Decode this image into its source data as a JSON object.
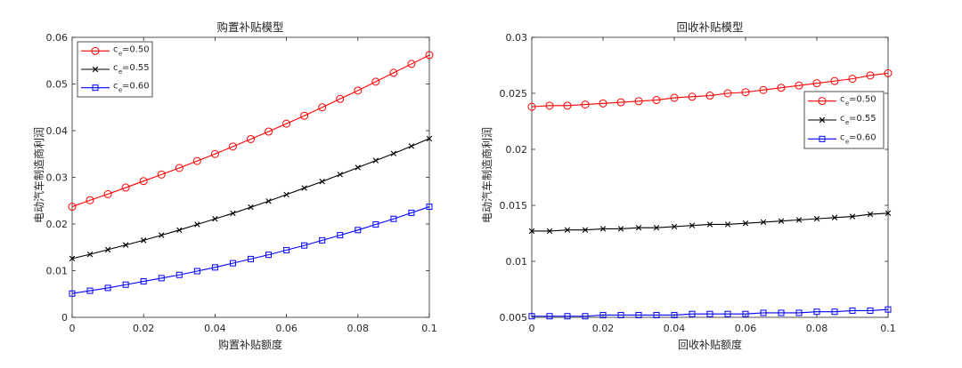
{
  "colors": {
    "red": "#ff0000",
    "black": "#000000",
    "blue": "#0000ff",
    "axis": "#262626"
  },
  "chart_data": [
    {
      "type": "line",
      "title": "购置补贴模型",
      "xlabel": "购置补贴额度",
      "ylabel": "电动汽车制造商利润",
      "xlim": [
        0,
        0.1
      ],
      "ylim": [
        0,
        0.06
      ],
      "xticks": [
        0,
        0.02,
        0.04,
        0.06,
        0.08,
        0.1
      ],
      "xtick_labels": [
        "0",
        "0.02",
        "0.04",
        "0.06",
        "0.08",
        "0.1"
      ],
      "yticks": [
        0,
        0.01,
        0.02,
        0.03,
        0.04,
        0.05,
        0.06
      ],
      "ytick_labels": [
        "0",
        "0.01",
        "0.02",
        "0.03",
        "0.04",
        "0.05",
        "0.06"
      ],
      "legend": "top-left",
      "x": [
        0,
        0.005,
        0.01,
        0.015,
        0.02,
        0.025,
        0.03,
        0.035,
        0.04,
        0.045,
        0.05,
        0.055,
        0.06,
        0.065,
        0.07,
        0.075,
        0.08,
        0.085,
        0.09,
        0.095,
        0.1
      ],
      "series": [
        {
          "name": "c_e=0.50",
          "label_main": "c",
          "label_sub": "e",
          "label_rest": "=0.50",
          "color": "#ff0000",
          "marker": "circle",
          "values": [
            0.0237,
            0.0251,
            0.0264,
            0.0278,
            0.0292,
            0.0306,
            0.032,
            0.0335,
            0.035,
            0.0366,
            0.0382,
            0.0398,
            0.0415,
            0.0432,
            0.045,
            0.0468,
            0.0486,
            0.0505,
            0.0524,
            0.0543,
            0.0562
          ]
        },
        {
          "name": "c_e=0.55",
          "label_main": "c",
          "label_sub": "e",
          "label_rest": "=0.55",
          "color": "#000000",
          "marker": "x",
          "values": [
            0.0126,
            0.0135,
            0.0145,
            0.0155,
            0.0165,
            0.0176,
            0.0187,
            0.0199,
            0.0211,
            0.0223,
            0.0236,
            0.0249,
            0.0263,
            0.0277,
            0.0291,
            0.0306,
            0.0321,
            0.0336,
            0.0351,
            0.0367,
            0.0383
          ]
        },
        {
          "name": "c_e=0.60",
          "label_main": "c",
          "label_sub": "e",
          "label_rest": "=0.60",
          "color": "#0000ff",
          "marker": "square",
          "values": [
            0.0051,
            0.0057,
            0.0063,
            0.007,
            0.0077,
            0.0084,
            0.0091,
            0.0099,
            0.0107,
            0.0116,
            0.0125,
            0.0134,
            0.0144,
            0.0154,
            0.0165,
            0.0176,
            0.0187,
            0.0199,
            0.0211,
            0.0224,
            0.0237
          ]
        }
      ]
    },
    {
      "type": "line",
      "title": "回收补贴模型",
      "xlabel": "回收补贴额度",
      "ylabel": "电动汽车制造商利润",
      "xlim": [
        0,
        0.1
      ],
      "ylim": [
        0.005,
        0.03
      ],
      "xticks": [
        0,
        0.02,
        0.04,
        0.06,
        0.08,
        0.1
      ],
      "xtick_labels": [
        "0",
        "0.02",
        "0.04",
        "0.06",
        "0.08",
        "0.1"
      ],
      "yticks": [
        0.005,
        0.01,
        0.015,
        0.02,
        0.025,
        0.03
      ],
      "ytick_labels": [
        "0.005",
        "0.01",
        "0.015",
        "0.02",
        "0.025",
        "0.03"
      ],
      "legend": "right",
      "x": [
        0,
        0.005,
        0.01,
        0.015,
        0.02,
        0.025,
        0.03,
        0.035,
        0.04,
        0.045,
        0.05,
        0.055,
        0.06,
        0.065,
        0.07,
        0.075,
        0.08,
        0.085,
        0.09,
        0.095,
        0.1
      ],
      "series": [
        {
          "name": "c_e=0.50",
          "label_main": "c",
          "label_sub": "e",
          "label_rest": "=0.50",
          "color": "#ff0000",
          "marker": "circle",
          "values": [
            0.0238,
            0.0239,
            0.0239,
            0.024,
            0.0241,
            0.0242,
            0.0243,
            0.0244,
            0.0246,
            0.0247,
            0.0248,
            0.025,
            0.0251,
            0.0253,
            0.0255,
            0.0257,
            0.0259,
            0.0261,
            0.0263,
            0.0266,
            0.0268
          ]
        },
        {
          "name": "c_e=0.55",
          "label_main": "c",
          "label_sub": "e",
          "label_rest": "=0.55",
          "color": "#000000",
          "marker": "x",
          "values": [
            0.0127,
            0.0127,
            0.0128,
            0.0128,
            0.0129,
            0.0129,
            0.013,
            0.013,
            0.0131,
            0.0132,
            0.0133,
            0.0133,
            0.0134,
            0.0135,
            0.0136,
            0.0137,
            0.0138,
            0.0139,
            0.014,
            0.0142,
            0.0143
          ]
        },
        {
          "name": "c_e=0.60",
          "label_main": "c",
          "label_sub": "e",
          "label_rest": "=0.60",
          "color": "#0000ff",
          "marker": "square",
          "values": [
            0.0051,
            0.0051,
            0.0051,
            0.0051,
            0.0052,
            0.0052,
            0.0052,
            0.0052,
            0.0052,
            0.0053,
            0.0053,
            0.0053,
            0.0053,
            0.0054,
            0.0054,
            0.0054,
            0.0055,
            0.0055,
            0.0056,
            0.0056,
            0.0057
          ]
        }
      ]
    }
  ]
}
